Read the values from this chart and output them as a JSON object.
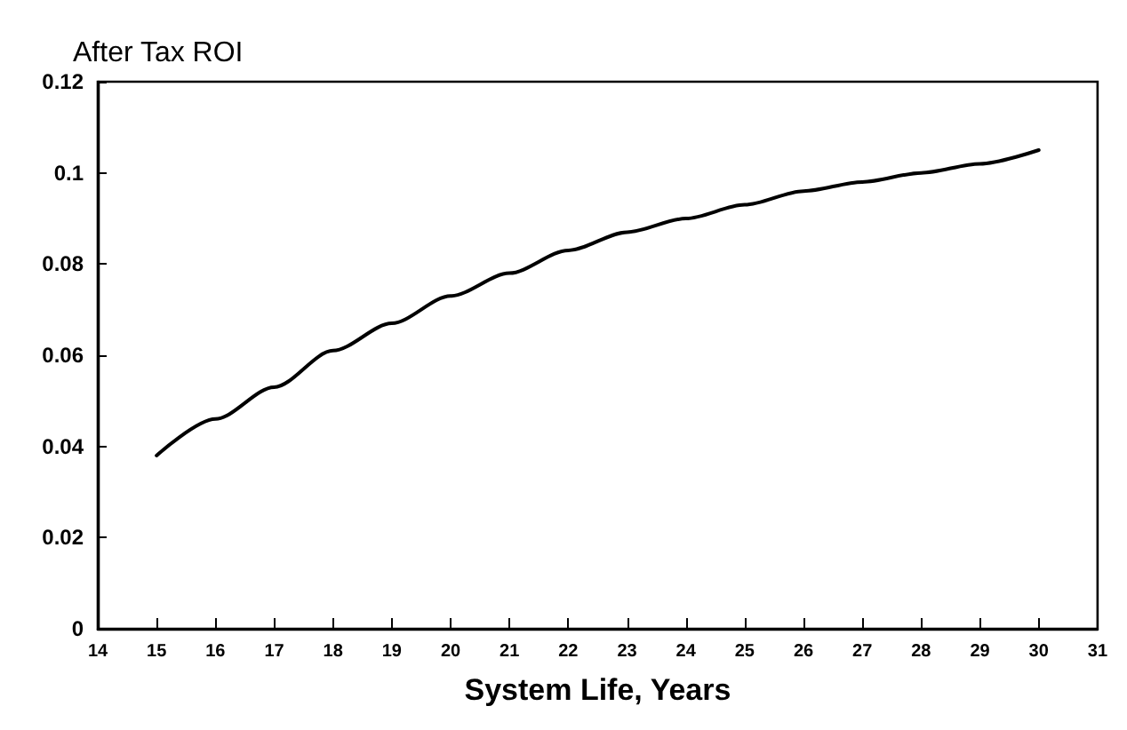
{
  "chart_data": {
    "type": "line",
    "ylabel": "After Tax ROI",
    "xlabel": "System Life, Years",
    "x": [
      15,
      16,
      17,
      18,
      19,
      20,
      21,
      22,
      23,
      24,
      25,
      26,
      27,
      28,
      29,
      30
    ],
    "series": [
      {
        "color": "#000000",
        "values": [
          0.038,
          0.046,
          0.053,
          0.061,
          0.067,
          0.073,
          0.078,
          0.083,
          0.087,
          0.09,
          0.093,
          0.096,
          0.098,
          0.1,
          0.102,
          0.105
        ]
      }
    ],
    "xlim": [
      14,
      31
    ],
    "xticks": [
      14,
      15,
      16,
      17,
      18,
      19,
      20,
      21,
      22,
      23,
      24,
      25,
      26,
      27,
      28,
      29,
      30,
      31
    ],
    "ylim": [
      0,
      0.12
    ],
    "yticks": [
      0,
      0.02,
      0.04,
      0.06,
      0.08,
      0.1,
      0.12
    ],
    "grid": false,
    "marker": "none",
    "line_style": "solid"
  }
}
